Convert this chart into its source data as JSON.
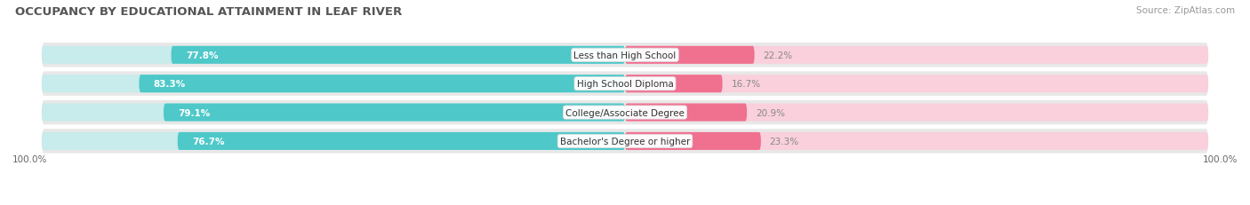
{
  "title": "OCCUPANCY BY EDUCATIONAL ATTAINMENT IN LEAF RIVER",
  "source": "Source: ZipAtlas.com",
  "categories": [
    "Less than High School",
    "High School Diploma",
    "College/Associate Degree",
    "Bachelor's Degree or higher"
  ],
  "owner_values": [
    77.8,
    83.3,
    79.1,
    76.7
  ],
  "renter_values": [
    22.2,
    16.7,
    20.9,
    23.3
  ],
  "owner_color": "#4EC8C8",
  "renter_color": "#F07090",
  "renter_bg_color": "#F9D0DC",
  "owner_bg_color": "#C8EBEB",
  "row_bg_color": "#E8E8E8",
  "title_color": "#555555",
  "source_color": "#999999",
  "axis_label_left": "100.0%",
  "axis_label_right": "100.0%",
  "figsize": [
    14.06,
    2.32
  ],
  "dpi": 100
}
